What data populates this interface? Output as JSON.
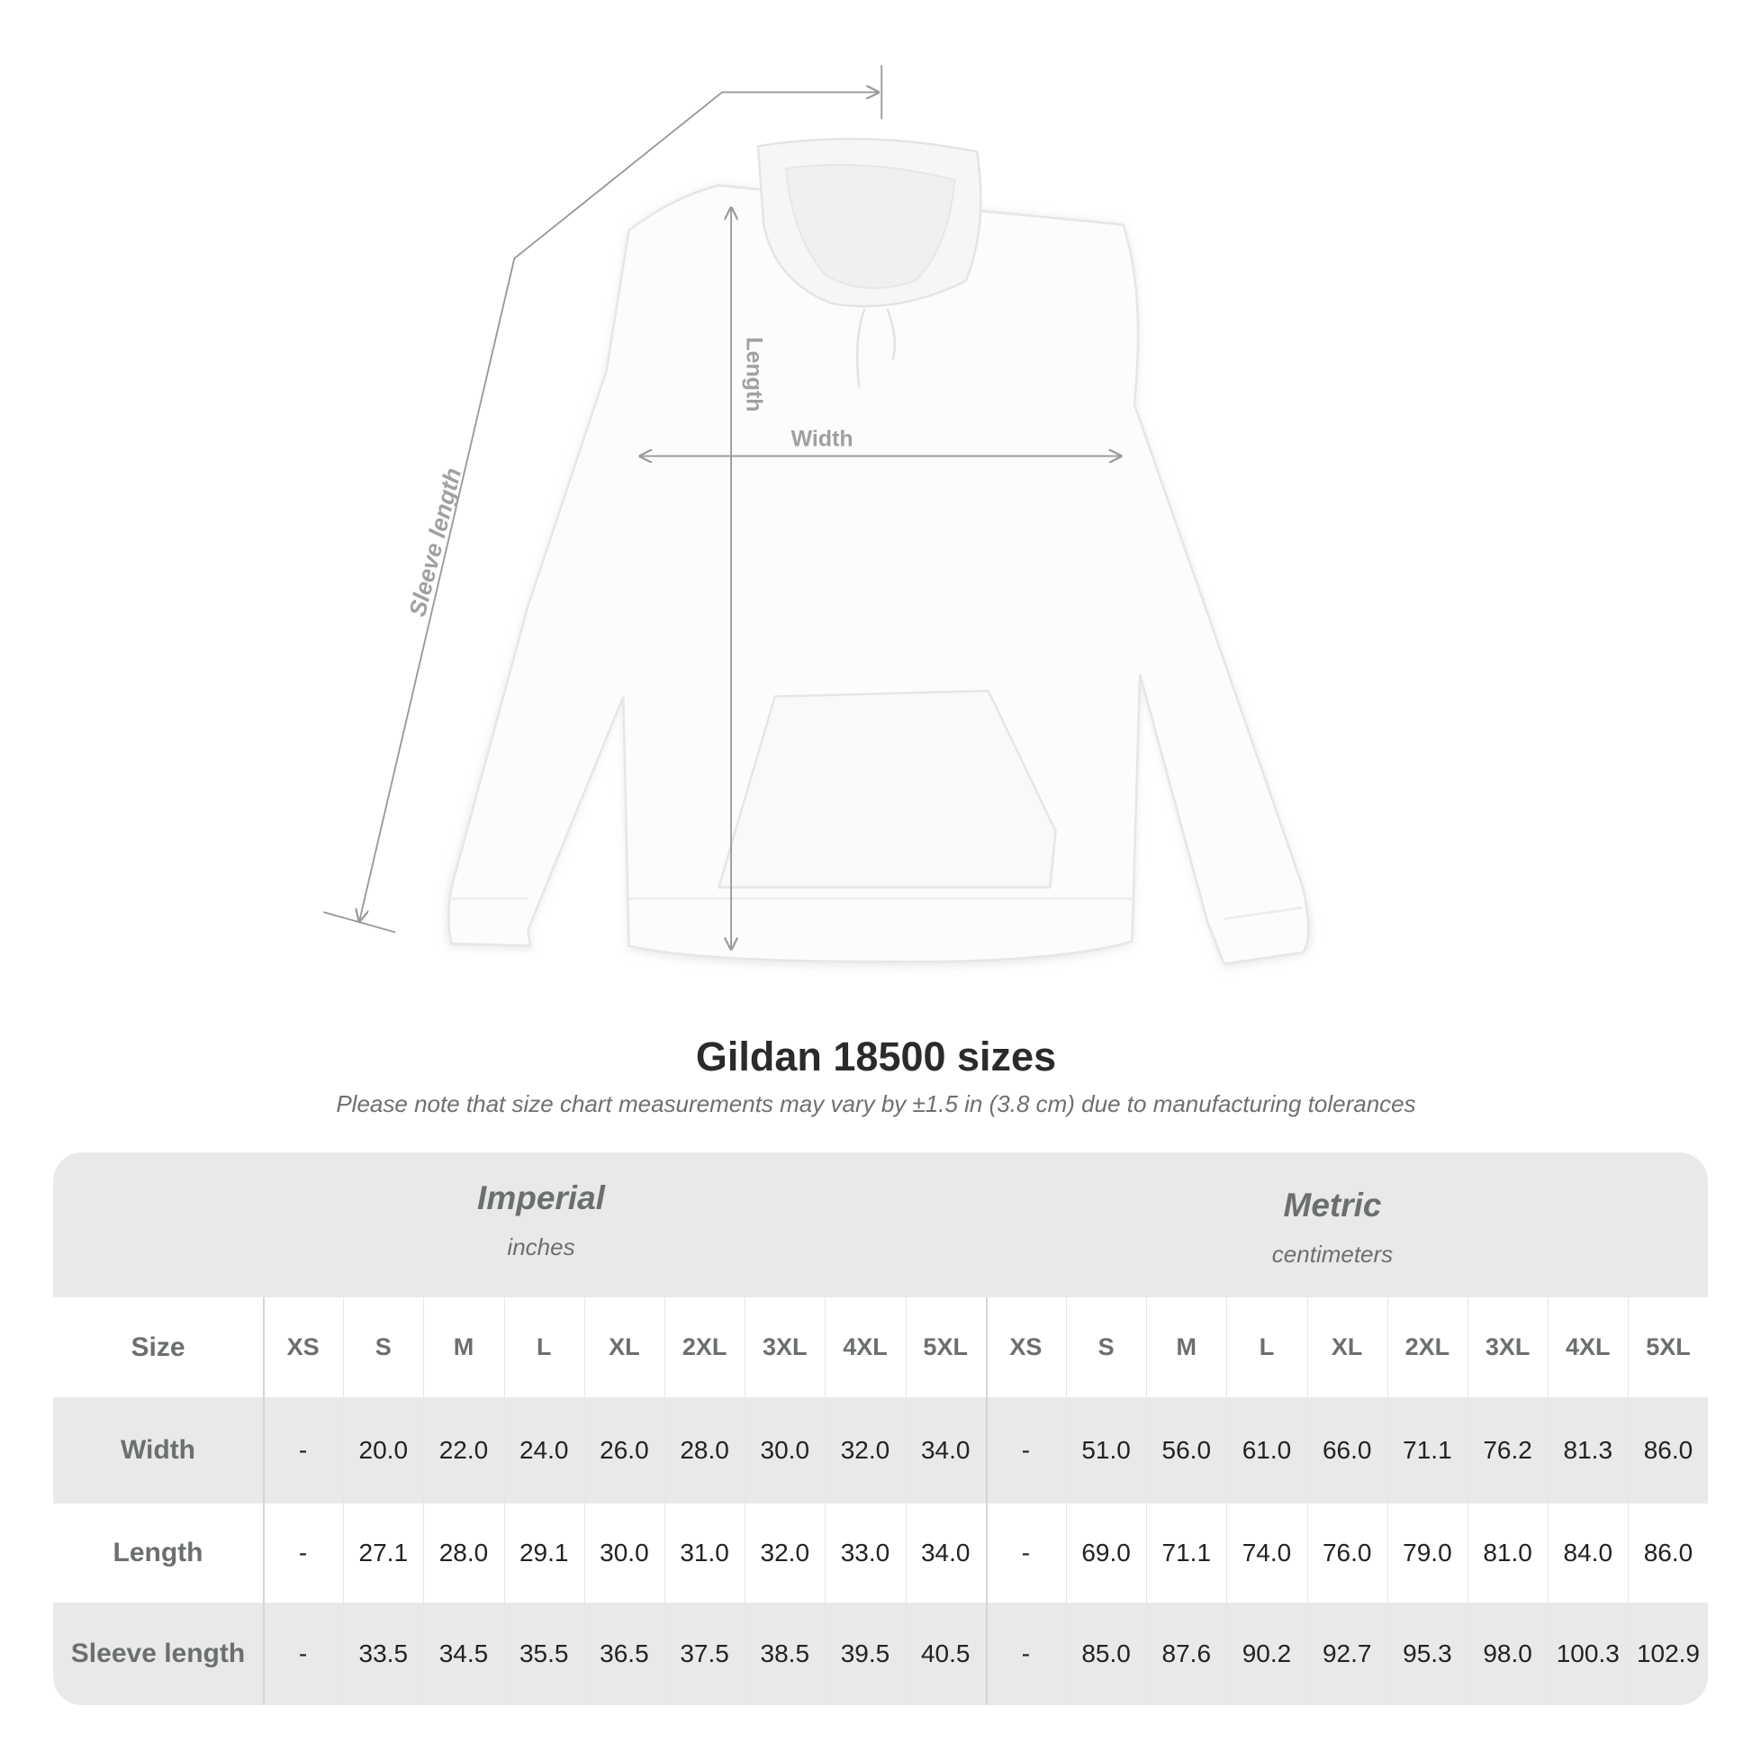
{
  "diagram": {
    "labels": {
      "sleeve": "Sleeve length",
      "length": "Length",
      "width": "Width"
    },
    "line_color": "#9a9a9a"
  },
  "title": "Gildan 18500 sizes",
  "subtitle": "Please note that size chart measurements may vary by ±1.5 in (3.8 cm) due to manufacturing tolerances",
  "table": {
    "imperial": {
      "name": "Imperial",
      "unit": "inches"
    },
    "metric": {
      "name": "Metric",
      "unit": "centimeters"
    },
    "size_label": "Size",
    "sizes": [
      "XS",
      "S",
      "M",
      "L",
      "XL",
      "2XL",
      "3XL",
      "4XL",
      "5XL"
    ],
    "rows": [
      {
        "label": "Width",
        "imperial": [
          "-",
          "20.0",
          "22.0",
          "24.0",
          "26.0",
          "28.0",
          "30.0",
          "32.0",
          "34.0"
        ],
        "metric": [
          "-",
          "51.0",
          "56.0",
          "61.0",
          "66.0",
          "71.1",
          "76.2",
          "81.3",
          "86.0"
        ]
      },
      {
        "label": "Length",
        "imperial": [
          "-",
          "27.1",
          "28.0",
          "29.1",
          "30.0",
          "31.0",
          "32.0",
          "33.0",
          "34.0"
        ],
        "metric": [
          "-",
          "69.0",
          "71.1",
          "74.0",
          "76.0",
          "79.0",
          "81.0",
          "84.0",
          "86.0"
        ]
      },
      {
        "label": "Sleeve length",
        "imperial": [
          "-",
          "33.5",
          "34.5",
          "35.5",
          "36.5",
          "37.5",
          "38.5",
          "39.5",
          "40.5"
        ],
        "metric": [
          "-",
          "85.0",
          "87.6",
          "90.2",
          "92.7",
          "95.3",
          "98.0",
          "100.3",
          "102.9"
        ]
      }
    ],
    "colors": {
      "band": "#e9e9e9",
      "label": "#6b6f70",
      "value": "#222222"
    }
  }
}
